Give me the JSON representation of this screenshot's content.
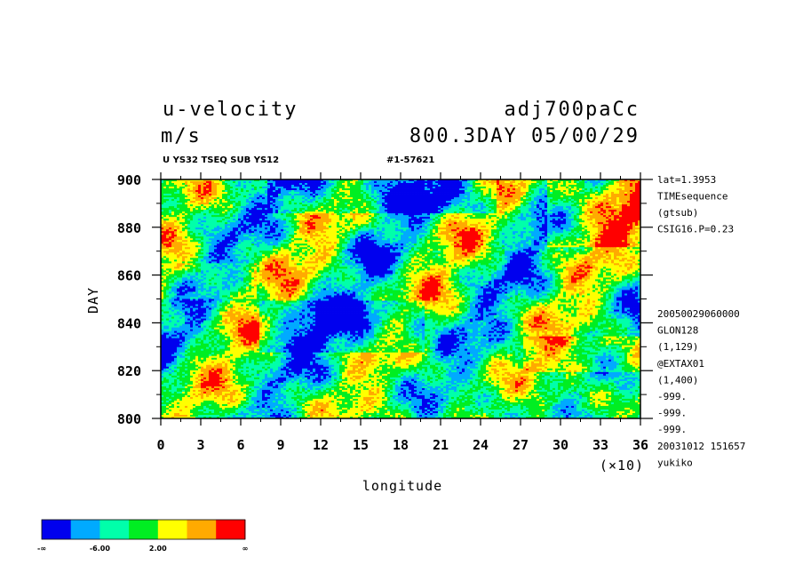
{
  "header": {
    "title_left": "u-velocity",
    "title_right": "adj700paCc",
    "units": "m/s",
    "time_info": "800.3DAY 05/00/29",
    "sub_left": "U YS32 TSEQ SUB YS12",
    "sub_right": "#1-57621"
  },
  "sidebar": {
    "top": [
      "lat=1.3953",
      "TIMEsequence",
      "(gtsub)",
      "CSIG16.P=0.23"
    ],
    "bottom": [
      "20050029060000",
      "GLON128",
      "(1,129)",
      "@EXTAX01",
      "(1,400)",
      "-999.",
      "-999.",
      "-999.",
      "20031012 151657",
      "yukiko"
    ]
  },
  "chart_data": {
    "type": "heatmap",
    "variable": "u-velocity",
    "xlabel": "longitude",
    "xscale_note": "(×10)",
    "ylabel": "DAY",
    "xlim": [
      0,
      36
    ],
    "ylim": [
      800,
      900
    ],
    "x_ticks": [
      "0",
      "3",
      "6",
      "9",
      "12",
      "15",
      "18",
      "21",
      "24",
      "27",
      "30",
      "33",
      "36"
    ],
    "y_ticks": [
      "800",
      "820",
      "840",
      "860",
      "880",
      "900"
    ],
    "colorbar": {
      "colors": [
        "#0000ee",
        "#00aaff",
        "#00ffaa",
        "#00ee22",
        "#ffff00",
        "#ffaa00",
        "#ff0000"
      ],
      "labels": [
        "-∞",
        "-6.00",
        "2.00",
        "∞"
      ]
    }
  }
}
